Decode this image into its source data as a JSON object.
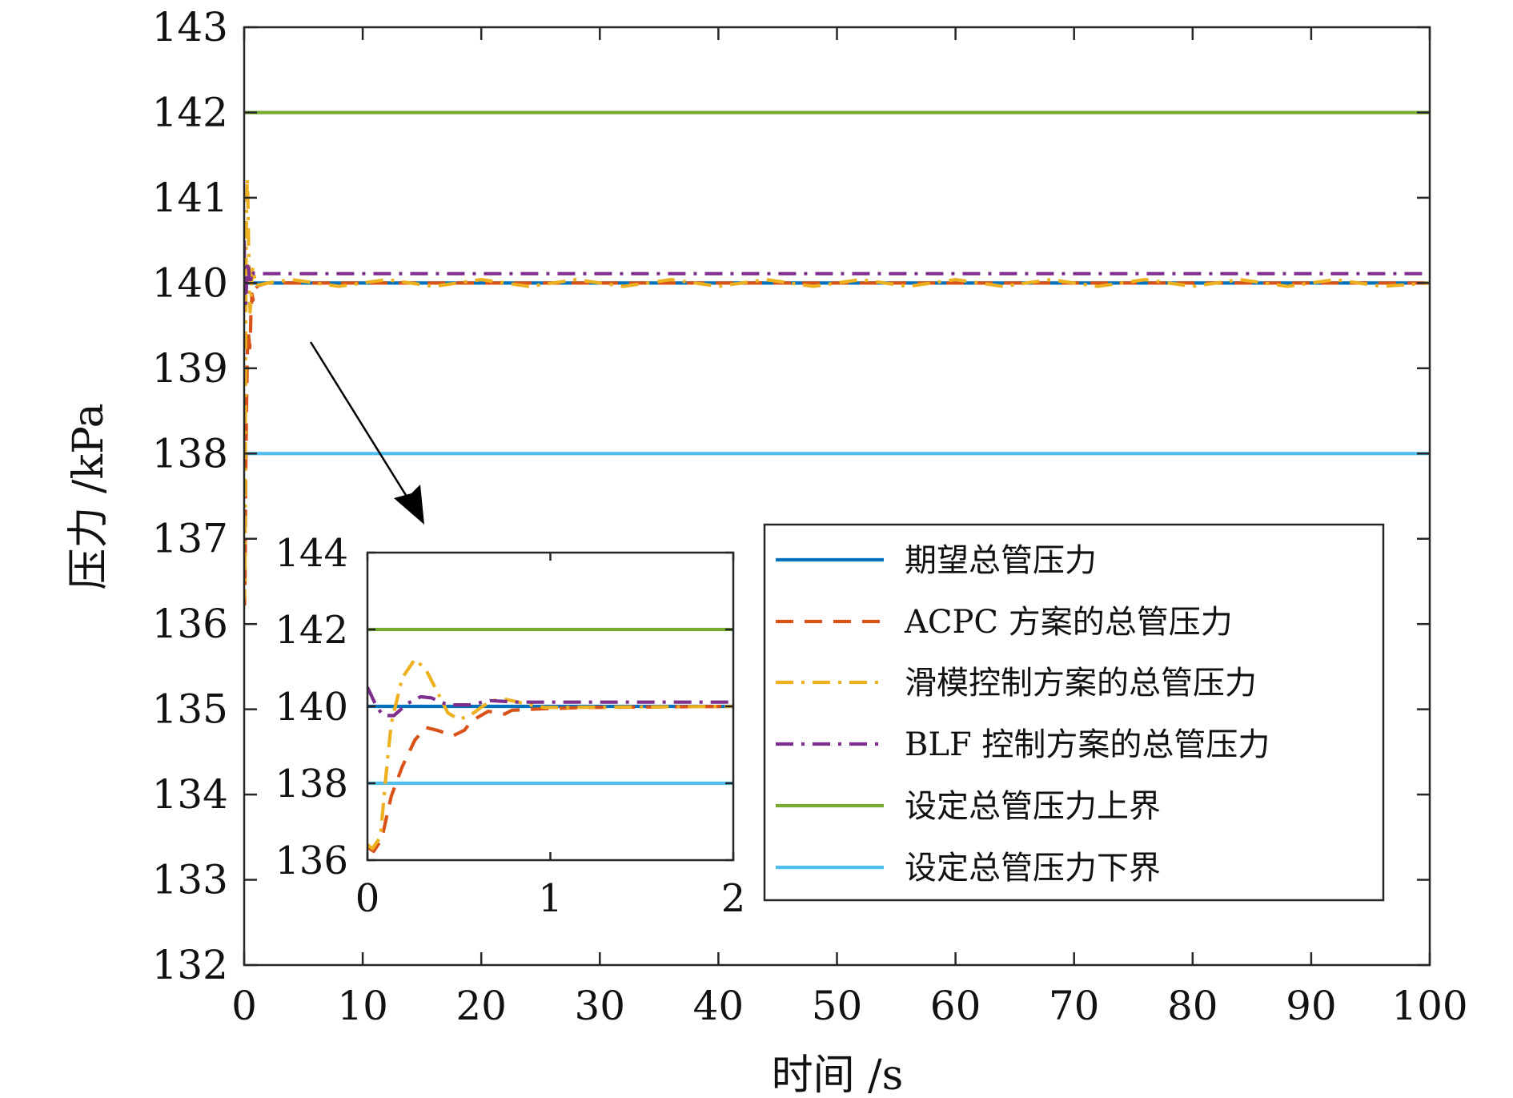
{
  "chart_data": {
    "type": "line",
    "xlabel": "时间 /s",
    "ylabel": "压力 /kPa",
    "xlim": [
      0,
      100
    ],
    "ylim": [
      132,
      143
    ],
    "xticks": [
      0,
      10,
      20,
      30,
      40,
      50,
      60,
      70,
      80,
      90,
      100
    ],
    "yticks": [
      132,
      133,
      134,
      135,
      136,
      137,
      138,
      139,
      140,
      141,
      142,
      143
    ],
    "grid": false,
    "legend_position": "bottom-right",
    "series": [
      {
        "name": "期望总管压力",
        "color": "#0072BD",
        "style": "solid",
        "x": [
          0,
          100
        ],
        "y": [
          140,
          140
        ]
      },
      {
        "name": "ACPC 方案的总管压力",
        "color": "#D95319",
        "style": "dashed",
        "x": [
          0,
          0.034,
          0.078,
          0.13,
          0.19,
          0.26,
          0.32,
          0.38,
          0.47,
          0.53,
          0.57,
          0.66,
          0.75,
          0.79,
          0.97,
          1.19,
          2,
          100
        ],
        "y": [
          136.34,
          136.23,
          136.55,
          137.66,
          138.43,
          139.13,
          139.45,
          139.38,
          139.24,
          139.38,
          139.62,
          139.87,
          139.8,
          139.9,
          139.94,
          139.97,
          140,
          140
        ]
      },
      {
        "name": "滑模控制方案的总管压力",
        "color": "#EDB120",
        "style": "dashdot",
        "x": [
          0,
          0.027,
          0.071,
          0.1,
          0.13,
          0.19,
          0.26,
          0.32,
          0.38,
          0.44,
          0.5,
          0.56,
          0.62,
          0.68,
          0.76,
          0.89,
          0.97,
          2,
          4,
          8,
          12,
          16,
          20,
          24,
          28,
          32,
          36,
          40,
          44,
          48,
          52,
          56,
          60,
          64,
          68,
          72,
          76,
          80,
          84,
          88,
          92,
          96,
          100
        ],
        "y": [
          136.4,
          136.3,
          136.6,
          138.15,
          139.55,
          140.74,
          141.23,
          140.95,
          140.4,
          139.83,
          139.66,
          139.76,
          139.97,
          140.15,
          140.18,
          140.04,
          139.97,
          140,
          140.04,
          139.96,
          140.04,
          139.96,
          140.04,
          139.96,
          140.04,
          139.96,
          140.04,
          139.96,
          140.04,
          139.96,
          140.04,
          139.96,
          140.04,
          139.96,
          140.04,
          139.96,
          140.04,
          139.96,
          140.04,
          139.96,
          140.04,
          139.96,
          140.0
        ]
      },
      {
        "name": "BLF 控制方案的总管压力",
        "color": "#7E2F8E",
        "style": "dashdot",
        "x": [
          0,
          0.049,
          0.086,
          0.145,
          0.22,
          0.29,
          0.35,
          0.44,
          0.56,
          0.67,
          0.82,
          2,
          100
        ],
        "y": [
          140.5,
          140.0,
          139.76,
          139.76,
          140.08,
          140.25,
          140.22,
          140.04,
          140.04,
          140.15,
          140.11,
          140.11,
          140.11
        ]
      },
      {
        "name": "设定总管压力上界",
        "color": "#77AC30",
        "style": "solid",
        "x": [
          0,
          100
        ],
        "y": [
          142,
          142
        ]
      },
      {
        "name": "设定总管压力下界",
        "color": "#4DBEEE",
        "style": "solid",
        "x": [
          0,
          100
        ],
        "y": [
          138,
          138
        ]
      }
    ],
    "inset": {
      "xlim": [
        0,
        2
      ],
      "ylim": [
        136,
        144
      ],
      "xticks": [
        0,
        1,
        2
      ],
      "yticks": [
        136,
        138,
        140,
        142,
        144
      ]
    }
  }
}
